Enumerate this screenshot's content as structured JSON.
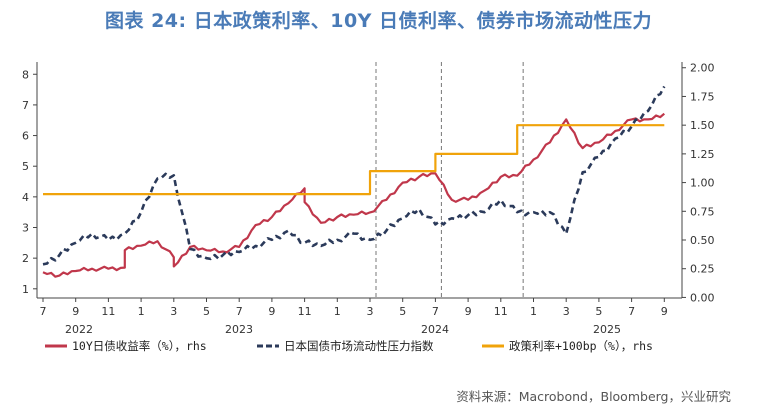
{
  "title": "图表 24: 日本政策利率、10Y 日债利率、债券市场流动性压力",
  "source": "资料来源：Macrobond，Bloomberg，兴业研究",
  "chart_data": {
    "type": "line",
    "title": "图表 24: 日本政策利率、10Y 日债利率、债券市场流动性压力",
    "x_tick_labels": [
      "7",
      "9",
      "11",
      "1",
      "3",
      "5",
      "7",
      "9",
      "11",
      "1",
      "3",
      "5",
      "7",
      "9",
      "11",
      "1",
      "3",
      "5",
      "7",
      "9"
    ],
    "x_year_labels": [
      "2022",
      "2023",
      "2024",
      "2025"
    ],
    "y_left": {
      "ylim": [
        0.7,
        8.4
      ],
      "ticks": [
        1,
        2,
        3,
        4,
        5,
        6,
        7,
        8
      ]
    },
    "y_right": {
      "ylim": [
        -0.005,
        2.05
      ],
      "ticks": [
        "0.00",
        "0.25",
        "0.50",
        "0.75",
        "1.00",
        "1.25",
        "1.50",
        "1.75",
        "2.00"
      ]
    },
    "vertical_markers": [
      "2024-03",
      "2024-07",
      "2024-12"
    ],
    "series": [
      {
        "name": "10Y日债收益率（%），rhs",
        "axis": "right",
        "color": "#c0374b",
        "style": "solid",
        "points": [
          [
            "2022-07",
            0.22
          ],
          [
            "2022-08",
            0.19
          ],
          [
            "2022-09",
            0.23
          ],
          [
            "2022-10",
            0.25
          ],
          [
            "2022-11",
            0.25
          ],
          [
            "2022-12",
            0.26
          ],
          [
            "2022-12",
            0.41
          ],
          [
            "2023-01",
            0.45
          ],
          [
            "2023-02",
            0.49
          ],
          [
            "2023-03",
            0.35
          ],
          [
            "2023-03",
            0.27
          ],
          [
            "2023-04",
            0.44
          ],
          [
            "2023-05",
            0.41
          ],
          [
            "2023-06",
            0.4
          ],
          [
            "2023-07",
            0.44
          ],
          [
            "2023-08",
            0.63
          ],
          [
            "2023-09",
            0.7
          ],
          [
            "2023-10",
            0.82
          ],
          [
            "2023-11",
            0.95
          ],
          [
            "2023-11",
            0.83
          ],
          [
            "2023-12",
            0.65
          ],
          [
            "2024-01",
            0.7
          ],
          [
            "2024-02",
            0.72
          ],
          [
            "2024-03",
            0.74
          ],
          [
            "2024-04",
            0.85
          ],
          [
            "2024-05",
            1.0
          ],
          [
            "2024-06",
            1.05
          ],
          [
            "2024-07",
            1.08
          ],
          [
            "2024-08",
            0.85
          ],
          [
            "2024-09",
            0.85
          ],
          [
            "2024-10",
            0.93
          ],
          [
            "2024-11",
            1.05
          ],
          [
            "2024-12",
            1.06
          ],
          [
            "2025-01",
            1.2
          ],
          [
            "2025-02",
            1.35
          ],
          [
            "2025-03",
            1.55
          ],
          [
            "2025-04",
            1.3
          ],
          [
            "2025-05",
            1.35
          ],
          [
            "2025-06",
            1.45
          ],
          [
            "2025-07",
            1.55
          ],
          [
            "2025-08",
            1.55
          ],
          [
            "2025-09",
            1.6
          ]
        ]
      },
      {
        "name": "日本国债市场流动性压力指数",
        "axis": "left",
        "color": "#2b3a5a",
        "style": "dashed",
        "points": [
          [
            "2022-07",
            1.8
          ],
          [
            "2022-08",
            2.1
          ],
          [
            "2022-09",
            2.5
          ],
          [
            "2022-10",
            2.8
          ],
          [
            "2022-11",
            2.6
          ],
          [
            "2022-12",
            2.8
          ],
          [
            "2023-01",
            3.5
          ],
          [
            "2023-02",
            4.6
          ],
          [
            "2023-03",
            4.7
          ],
          [
            "2023-04",
            2.3
          ],
          [
            "2023-05",
            2.0
          ],
          [
            "2023-06",
            2.1
          ],
          [
            "2023-07",
            2.2
          ],
          [
            "2023-08",
            2.4
          ],
          [
            "2023-09",
            2.6
          ],
          [
            "2023-10",
            2.9
          ],
          [
            "2023-11",
            2.5
          ],
          [
            "2023-12",
            2.4
          ],
          [
            "2024-01",
            2.6
          ],
          [
            "2024-02",
            2.8
          ],
          [
            "2024-03",
            2.6
          ],
          [
            "2024-04",
            2.9
          ],
          [
            "2024-05",
            3.3
          ],
          [
            "2024-06",
            3.6
          ],
          [
            "2024-07",
            3.1
          ],
          [
            "2024-08",
            3.3
          ],
          [
            "2024-09",
            3.4
          ],
          [
            "2024-10",
            3.5
          ],
          [
            "2024-11",
            3.9
          ],
          [
            "2024-12",
            3.5
          ],
          [
            "2025-01",
            3.5
          ],
          [
            "2025-02",
            3.5
          ],
          [
            "2025-03",
            2.8
          ],
          [
            "2025-04",
            4.8
          ],
          [
            "2025-05",
            5.3
          ],
          [
            "2025-06",
            5.9
          ],
          [
            "2025-07",
            6.3
          ],
          [
            "2025-08",
            6.8
          ],
          [
            "2025-09",
            7.6
          ]
        ]
      },
      {
        "name": "政策利率+100bp（%），rhs",
        "axis": "right",
        "color": "#f0a30a",
        "style": "solid",
        "points": [
          [
            "2022-07",
            0.9
          ],
          [
            "2024-03",
            0.9
          ],
          [
            "2024-03",
            1.1
          ],
          [
            "2024-07",
            1.1
          ],
          [
            "2024-07",
            1.25
          ],
          [
            "2024-12",
            1.25
          ],
          [
            "2024-12",
            1.5
          ],
          [
            "2025-09",
            1.5
          ]
        ]
      }
    ]
  }
}
